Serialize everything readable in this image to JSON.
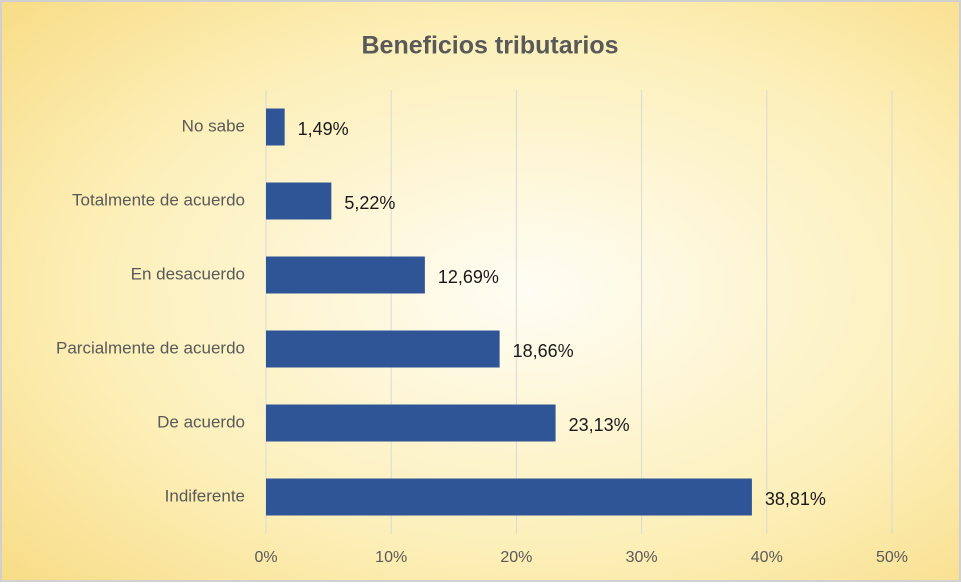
{
  "chart_data": {
    "type": "bar",
    "orientation": "horizontal",
    "title": "Beneficios tributarios",
    "categories": [
      "No sabe",
      "Totalmente de acuerdo",
      "En desacuerdo",
      "Parcialmente de acuerdo",
      "De acuerdo",
      "Indiferente"
    ],
    "values": [
      1.49,
      5.22,
      12.69,
      18.66,
      23.13,
      38.81
    ],
    "value_labels": [
      "1,49%",
      "5,22%",
      "12,69%",
      "18,66%",
      "23,13%",
      "38,81%"
    ],
    "color": "#2f5597",
    "xlim": [
      0,
      50
    ],
    "xticks": [
      {
        "value": 0,
        "label": "0%"
      },
      {
        "value": 10,
        "label": "10%"
      },
      {
        "value": 20,
        "label": "20%"
      },
      {
        "value": 30,
        "label": "30%"
      },
      {
        "value": 40,
        "label": "40%"
      },
      {
        "value": 50,
        "label": "50%"
      }
    ],
    "grid": true
  }
}
